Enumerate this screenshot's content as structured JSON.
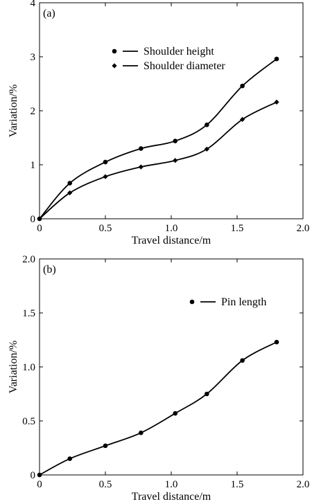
{
  "chart_data": [
    {
      "type": "line",
      "panel_label": "(a)",
      "xlabel": "Travel distance/m",
      "ylabel": "Variation/%",
      "xlim": [
        0,
        2.0
      ],
      "ylim": [
        0,
        4
      ],
      "x_ticks": [
        "0",
        "0.5",
        "1.0",
        "1.5",
        "2.0"
      ],
      "y_ticks": [
        "0",
        "1",
        "2",
        "3",
        "4"
      ],
      "x_tick_values": [
        0,
        0.5,
        1.0,
        1.5,
        2.0
      ],
      "y_tick_values": [
        0,
        1,
        2,
        3,
        4
      ],
      "legend_position": "top-right",
      "grid": false,
      "series": [
        {
          "name": "Shoulder height",
          "marker": "circle",
          "x": [
            0,
            0.23,
            0.5,
            0.77,
            1.03,
            1.27,
            1.54,
            1.8
          ],
          "y": [
            0,
            0.66,
            1.05,
            1.3,
            1.44,
            1.74,
            2.46,
            2.96
          ]
        },
        {
          "name": "Shoulder diameter",
          "marker": "diamond",
          "x": [
            0,
            0.23,
            0.5,
            0.77,
            1.03,
            1.27,
            1.54,
            1.8
          ],
          "y": [
            0,
            0.48,
            0.78,
            0.96,
            1.08,
            1.29,
            1.84,
            2.16
          ]
        }
      ]
    },
    {
      "type": "line",
      "panel_label": "(b)",
      "xlabel": "Travel distance/m",
      "ylabel": "Variation/%",
      "xlim": [
        0,
        2.0
      ],
      "ylim": [
        0,
        2.0
      ],
      "x_ticks": [
        "0",
        "0.5",
        "1.0",
        "1.5",
        "2.0"
      ],
      "y_ticks": [
        "0",
        "0.5",
        "1.0",
        "1.5",
        "2.0"
      ],
      "x_tick_values": [
        0,
        0.5,
        1.0,
        1.5,
        2.0
      ],
      "y_tick_values": [
        0,
        0.5,
        1.0,
        1.5,
        2.0
      ],
      "legend_position": "top-right",
      "grid": false,
      "series": [
        {
          "name": "Pin length",
          "marker": "circle",
          "x": [
            0,
            0.23,
            0.5,
            0.77,
            1.03,
            1.27,
            1.54,
            1.8
          ],
          "y": [
            0,
            0.15,
            0.27,
            0.39,
            0.57,
            0.75,
            1.06,
            1.23
          ]
        }
      ]
    }
  ],
  "colors": {
    "ink": "#000000",
    "background": "#ffffff"
  }
}
